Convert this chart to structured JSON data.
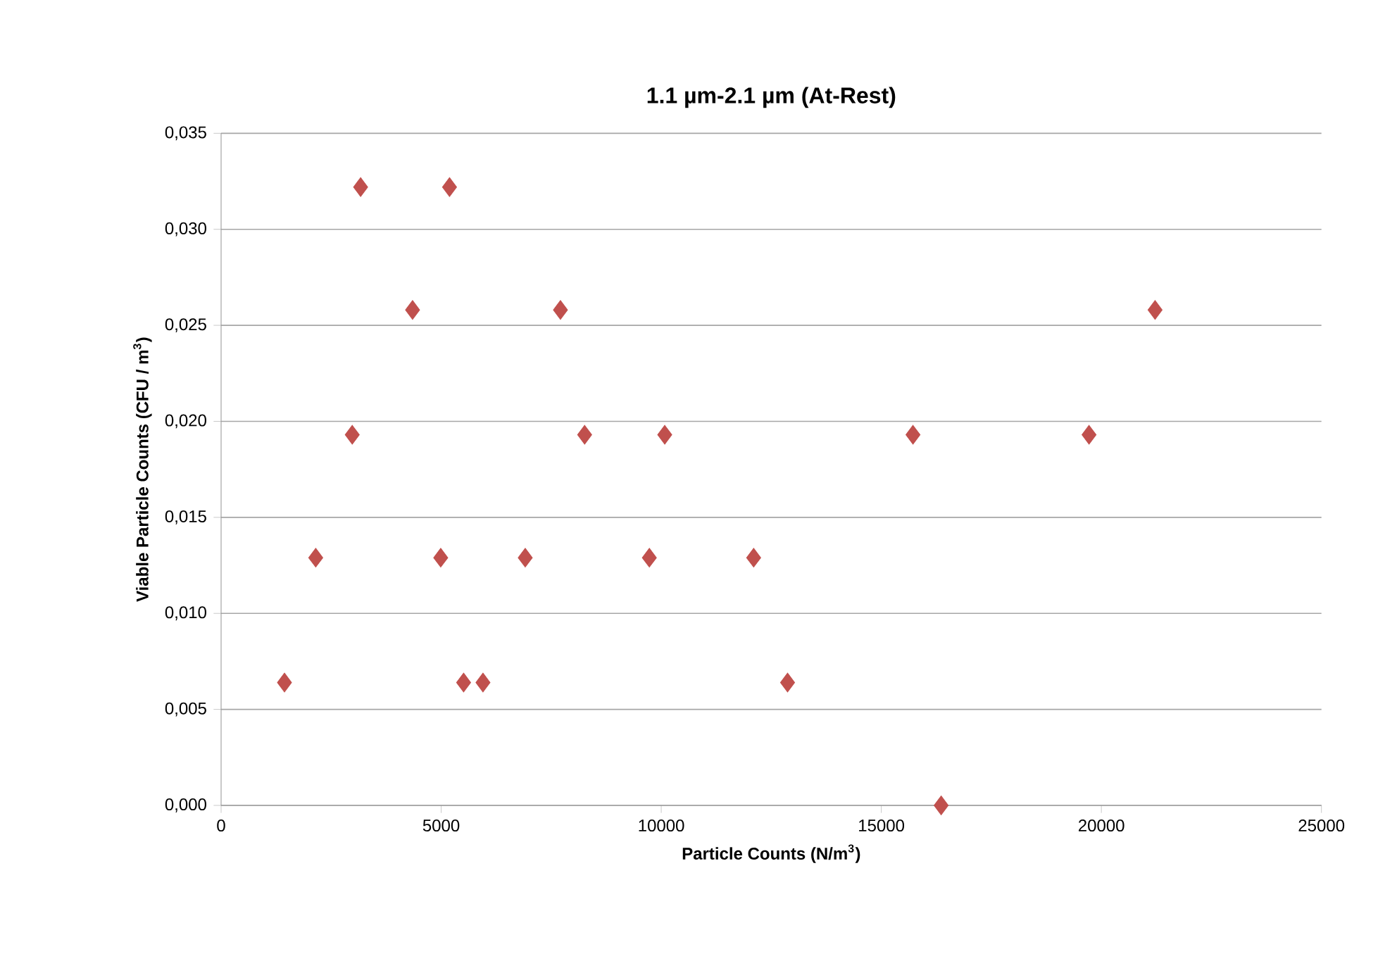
{
  "chart_data": {
    "type": "scatter",
    "title": "1.1 µm-2.1 µm (At-Rest)",
    "xlabel": "Particle Counts (N/m$^{3}$)",
    "ylabel": "Viable Particle Counts (CFU / m$^{3}$)",
    "x": [
      1440,
      2150,
      2980,
      3170,
      4350,
      4990,
      5190,
      5510,
      5950,
      6910,
      7710,
      8260,
      9730,
      10080,
      12100,
      12870,
      15720,
      16360,
      19720,
      21220
    ],
    "values": [
      0.0064,
      0.0129,
      0.0193,
      0.0322,
      0.0258,
      0.0129,
      0.0322,
      0.0064,
      0.0064,
      0.0129,
      0.0258,
      0.0193,
      0.0129,
      0.0193,
      0.0129,
      0.0064,
      0.0193,
      0.0,
      0.0193,
      0.0258
    ],
    "color": "#c0504d",
    "marker": "diamond",
    "grid": "y",
    "xlim": [
      0,
      25000
    ],
    "xticks": [
      0,
      5000,
      10000,
      15000,
      20000,
      25000
    ],
    "ylim": [
      0,
      0.035
    ],
    "yticks": [
      {
        "value": 0,
        "label": "0,000"
      },
      {
        "value": 0.005,
        "label": "0,005"
      },
      {
        "value": 0.01,
        "label": "0,010"
      },
      {
        "value": 0.015,
        "label": "0,015"
      },
      {
        "value": 0.02,
        "label": "0,020"
      },
      {
        "value": 0.025,
        "label": "0,025"
      },
      {
        "value": 0.03,
        "label": "0,030"
      },
      {
        "value": 0.035,
        "label": "0,035"
      }
    ]
  }
}
